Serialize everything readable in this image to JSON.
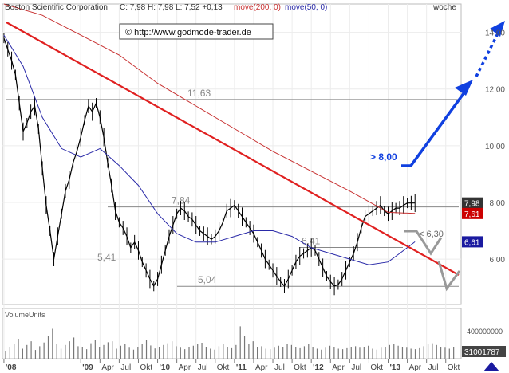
{
  "header": {
    "title": "Boston Scientific Corporation",
    "quote": "C: 7,98 H: 7,98 L: 7,52 +0,13",
    "ma200_label": "move(200, 0)",
    "ma50_label": "move(50, 0)",
    "period": "woche"
  },
  "watermark": "© http://www.godmode-trader.de",
  "volume_label": "VolumeUnits",
  "colors": {
    "price": "#000000",
    "ma200": "#c83232",
    "ma50": "#2a2aa8",
    "trendline": "#e02020",
    "forecast": "#1040e0",
    "level": "#888888",
    "volume": "#777777",
    "frame": "#bbbbbb"
  },
  "chart_data": [
    {
      "type": "line",
      "title": "Boston Scientific Corporation",
      "xlabel": "",
      "ylabel": "",
      "x_ticks": [
        "'08",
        "'09",
        "Apr",
        "Jul",
        "Okt",
        "'10",
        "Apr",
        "Jul",
        "Okt",
        "'11",
        "Apr",
        "Jul",
        "Okt",
        "'12",
        "Apr",
        "Jul",
        "Okt",
        "'13",
        "Apr",
        "Jul",
        "Okt"
      ],
      "y_ticks": [
        "14,00",
        "12,00",
        "10,00",
        "8,00",
        "6,00"
      ],
      "ylim": [
        4.4,
        15.0
      ],
      "grid": true,
      "series": [
        {
          "name": "Boston Scientific Corporation",
          "x": [
            2008.0,
            2008.05,
            2008.1,
            2008.15,
            2008.2,
            2008.25,
            2008.3,
            2008.35,
            2008.4,
            2008.45,
            2008.5,
            2008.55,
            2008.6,
            2008.65,
            2008.7,
            2008.75,
            2008.8,
            2008.85,
            2008.9,
            2008.95,
            2009.0,
            2009.05,
            2009.1,
            2009.15,
            2009.2,
            2009.25,
            2009.3,
            2009.35,
            2009.4,
            2009.45,
            2009.5,
            2009.55,
            2009.6,
            2009.65,
            2009.7,
            2009.75,
            2009.8,
            2009.85,
            2009.9,
            2009.95,
            2010.0,
            2010.05,
            2010.1,
            2010.15,
            2010.2,
            2010.25,
            2010.3,
            2010.35,
            2010.4,
            2010.45,
            2010.5,
            2010.55,
            2010.6,
            2010.65,
            2010.7,
            2010.75,
            2010.8,
            2010.85,
            2010.9,
            2010.95,
            2011.0,
            2011.05,
            2011.1,
            2011.15,
            2011.2,
            2011.25,
            2011.3,
            2011.35,
            2011.4,
            2011.45,
            2011.5,
            2011.55,
            2011.6,
            2011.65,
            2011.7,
            2011.75,
            2011.8,
            2011.85,
            2011.9,
            2011.95,
            2012.0,
            2012.05,
            2012.1,
            2012.15,
            2012.2,
            2012.25,
            2012.3,
            2012.35,
            2012.4,
            2012.45,
            2012.5,
            2012.55,
            2012.6,
            2012.65,
            2012.7,
            2012.75,
            2012.8,
            2012.85,
            2012.9,
            2012.95,
            2013.0,
            2013.05,
            2013.1,
            2013.15,
            2013.2,
            2013.25,
            2013.3,
            2013.35
          ],
          "values": [
            13.8,
            13.4,
            13.0,
            12.5,
            11.5,
            10.5,
            10.8,
            11.2,
            11.4,
            10.6,
            9.2,
            7.9,
            7.0,
            6.0,
            6.8,
            7.6,
            8.4,
            8.8,
            9.4,
            9.8,
            10.3,
            10.9,
            11.4,
            11.2,
            11.5,
            11.0,
            10.3,
            9.4,
            8.6,
            7.7,
            7.3,
            7.1,
            6.8,
            6.4,
            6.6,
            6.3,
            5.9,
            5.6,
            5.3,
            5.05,
            5.3,
            5.8,
            6.3,
            6.8,
            7.2,
            7.6,
            7.8,
            7.7,
            7.5,
            7.4,
            7.2,
            7.0,
            6.9,
            6.8,
            6.7,
            6.8,
            7.0,
            7.3,
            7.7,
            7.8,
            7.9,
            7.7,
            7.5,
            7.3,
            7.1,
            6.9,
            6.6,
            6.3,
            6.0,
            5.8,
            5.6,
            5.4,
            5.2,
            5.05,
            5.3,
            5.6,
            5.9,
            6.1,
            6.2,
            6.3,
            6.41,
            6.3,
            6.0,
            5.7,
            5.4,
            5.2,
            5.05,
            5.1,
            5.3,
            5.6,
            5.9,
            6.2,
            6.6,
            7.1,
            7.5,
            7.6,
            7.7,
            7.8,
            7.9,
            7.7,
            7.6,
            7.7,
            7.8,
            7.8,
            7.9,
            7.98,
            7.98,
            7.98
          ]
        },
        {
          "name": "move(200, 0)",
          "x": [
            2008.0,
            2008.5,
            2009.0,
            2009.5,
            2010.0,
            2010.5,
            2011.0,
            2011.5,
            2012.0,
            2012.5,
            2013.0,
            2013.35
          ],
          "values": [
            15.0,
            14.6,
            13.9,
            13.2,
            12.2,
            11.4,
            10.6,
            9.8,
            9.1,
            8.4,
            7.65,
            7.61
          ]
        },
        {
          "name": "move(50, 0)",
          "x": [
            2008.0,
            2008.25,
            2008.5,
            2008.75,
            2009.0,
            2009.25,
            2009.5,
            2009.75,
            2010.0,
            2010.25,
            2010.5,
            2010.75,
            2011.0,
            2011.25,
            2011.5,
            2011.75,
            2012.0,
            2012.25,
            2012.5,
            2012.75,
            2013.0,
            2013.15,
            2013.35
          ],
          "values": [
            13.9,
            12.8,
            11.0,
            9.9,
            9.6,
            9.9,
            9.3,
            8.6,
            7.6,
            6.9,
            6.6,
            6.6,
            6.8,
            7.0,
            7.0,
            6.8,
            6.4,
            6.2,
            6.0,
            5.8,
            5.9,
            6.2,
            6.61
          ]
        }
      ],
      "price_tags": [
        {
          "value": 7.98,
          "text": "7,98",
          "bg": "#333333"
        },
        {
          "value": 7.61,
          "text": "7,61",
          "bg": "#cc0000"
        },
        {
          "value": 6.61,
          "text": "6,61",
          "bg": "#1a1aa0"
        }
      ],
      "levels": [
        {
          "value": 11.63,
          "text": "11,63"
        },
        {
          "value": 7.84,
          "text": "7,84"
        },
        {
          "value": 6.41,
          "text": "6,41"
        },
        {
          "value": 5.04,
          "text": "5,04"
        }
      ],
      "annotations": [
        "5,41",
        "> 8,00",
        "< 6,30"
      ]
    },
    {
      "type": "bar",
      "title": "VolumeUnits",
      "y_ticks": [
        "400000000"
      ],
      "last_value_text": "31001787",
      "values": [
        30,
        45,
        60,
        80,
        40,
        55,
        70,
        35,
        50,
        65,
        90,
        120,
        60,
        40,
        55,
        70,
        85,
        50,
        45,
        38,
        62,
        75,
        48,
        55,
        66,
        70,
        40,
        52,
        58,
        44,
        36,
        48,
        60,
        75,
        53,
        41,
        47,
        55,
        62,
        70,
        50,
        44,
        38,
        46,
        52,
        58,
        64,
        45,
        40,
        36,
        50,
        60,
        48,
        42,
        55,
        130,
        90,
        60,
        70,
        45,
        50,
        40,
        38,
        44,
        52,
        46,
        60,
        55,
        48,
        42,
        50,
        58,
        46,
        40,
        36,
        44,
        52,
        48,
        40,
        38,
        42,
        46,
        50,
        44,
        48,
        52,
        40,
        36,
        44,
        48,
        55,
        60,
        52,
        46,
        44,
        40,
        38,
        42,
        50,
        58,
        62,
        55,
        48,
        44,
        40,
        46
      ]
    }
  ]
}
